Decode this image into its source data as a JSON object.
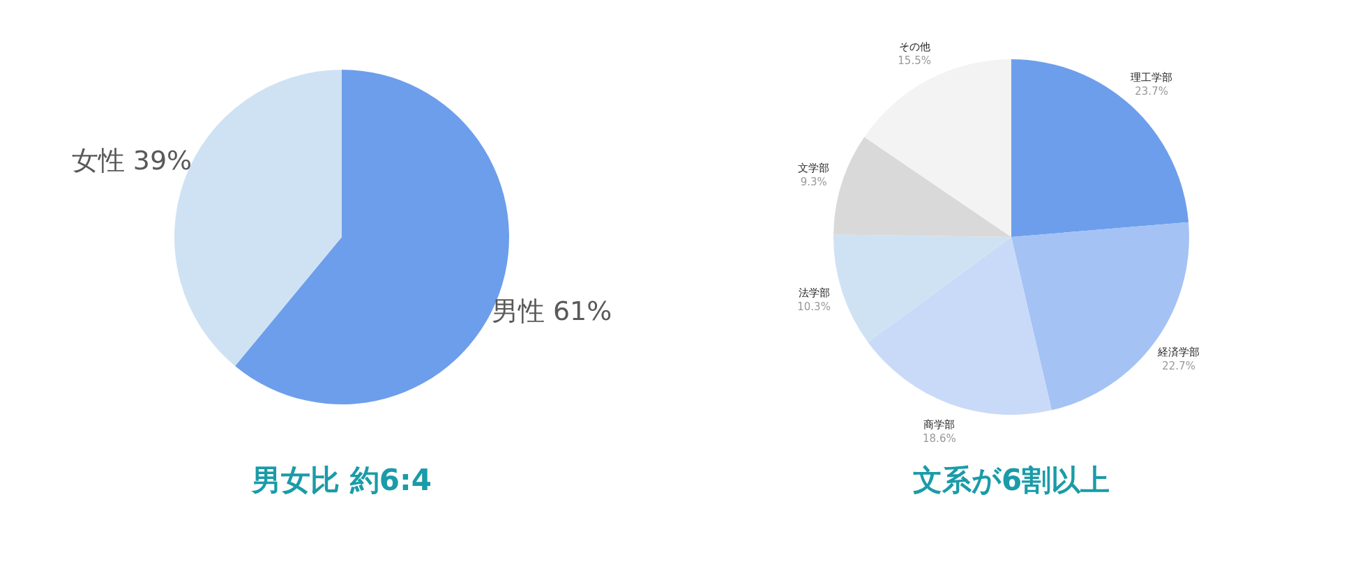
{
  "chart_data": [
    {
      "type": "pie",
      "title": "男女比 約6:4",
      "categories": [
        "男性",
        "女性"
      ],
      "values": [
        61,
        39
      ],
      "value_labels": [
        "61%",
        "39%"
      ],
      "colors": [
        "#6d9eeb",
        "#cfe2f3"
      ]
    },
    {
      "type": "pie",
      "title": "文系が6割以上",
      "categories": [
        "理工学部",
        "経済学部",
        "商学部",
        "法学部",
        "文学部",
        "その他"
      ],
      "values": [
        23.7,
        22.7,
        18.6,
        10.3,
        9.3,
        15.5
      ],
      "value_labels": [
        "23.7%",
        "22.7%",
        "18.6%",
        "10.3%",
        "9.3%",
        "15.5%"
      ],
      "colors": [
        "#6d9eeb",
        "#a4c2f4",
        "#c9daf8",
        "#cfe2f3",
        "#d9d9d9",
        "#f3f3f3"
      ]
    }
  ]
}
